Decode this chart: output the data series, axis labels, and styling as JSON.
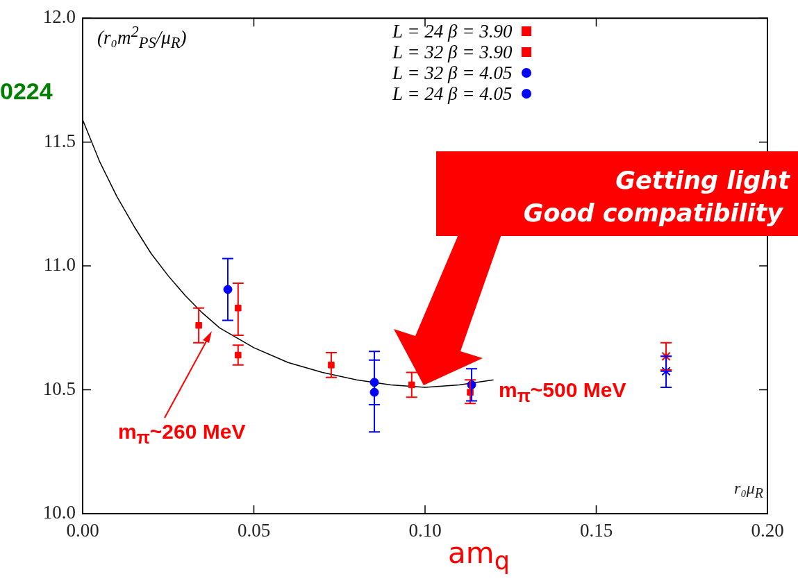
{
  "chart_data": {
    "type": "scatter",
    "xlabel": "am$_{q}$",
    "ylabel": "(r₀m$^{2}$$_{PS}$/μ$_{R}$)",
    "xlim": [
      0,
      0.2
    ],
    "xticks": [
      {
        "value": 0,
        "label": "0.00"
      },
      {
        "value": 0.05,
        "label": "0.05"
      },
      {
        "value": 0.1,
        "label": "0.10"
      },
      {
        "value": 0.15,
        "label": "0.15"
      },
      {
        "value": 0.2,
        "label": "0.20"
      }
    ],
    "ylim": [
      10,
      12
    ],
    "yticks": [
      {
        "value": 10,
        "label": "10.0"
      },
      {
        "value": 10.5,
        "label": "10.5"
      },
      {
        "value": 11,
        "label": "11.0"
      },
      {
        "value": 11.5,
        "label": "11.5"
      },
      {
        "value": 12,
        "label": "12.0"
      }
    ],
    "grid": false,
    "legend": "top right",
    "series": [
      {
        "name": "L = 24  β = 3.90",
        "color": "#ff0000",
        "marker": "square",
        "x": [
          0.0454,
          0.0726,
          0.0961,
          0.1132
        ],
        "values": [
          10.83,
          10.6,
          10.52,
          10.49
        ],
        "errors": [
          [
            10.72,
            10.93
          ],
          [
            10.55,
            10.65
          ],
          [
            10.47,
            10.57
          ],
          [
            10.445,
            10.54
          ]
        ]
      },
      {
        "name": "L = 32  β = 3.90",
        "color": "#ff0000",
        "marker": "square",
        "x": [
          0.0339,
          0.0454
        ],
        "values": [
          10.76,
          10.64
        ],
        "errors": [
          [
            10.69,
            10.83
          ],
          [
            10.6,
            10.68
          ]
        ]
      },
      {
        "name": "L = 32  β = 4.05",
        "color": "#0000ff",
        "marker": "circle",
        "x": [
          0.0424,
          0.0852,
          0.1136
        ],
        "values": [
          10.905,
          10.53,
          10.52
        ],
        "errors": [
          [
            10.78,
            11.03
          ],
          [
            10.44,
            10.655
          ],
          [
            10.455,
            10.585
          ]
        ]
      },
      {
        "name": "L = 24  β = 4.05",
        "color": "#0000ff",
        "marker": "circle",
        "x": [
          0.0852
        ],
        "values": [
          10.49
        ],
        "errors": [
          [
            10.33,
            10.62
          ]
        ]
      },
      {
        "color": "#ff0000",
        "marker": "cross",
        "x": [
          0.1704
        ],
        "values": [
          10.635
        ],
        "errors": [
          [
            10.58,
            10.69
          ]
        ]
      },
      {
        "color": "#0000ff",
        "marker": "cross",
        "x": [
          0.1704
        ],
        "values": [
          10.575
        ],
        "errors": [
          [
            10.51,
            10.635
          ]
        ]
      },
      {
        "type": "line",
        "color": "#000000",
        "marker": "none",
        "x": [
          0,
          0.005,
          0.01,
          0.015,
          0.02,
          0.025,
          0.03,
          0.035,
          0.04,
          0.045,
          0.05,
          0.06,
          0.07,
          0.08,
          0.09,
          0.1,
          0.11,
          0.12
        ],
        "values": [
          11.59,
          11.42,
          11.28,
          11.16,
          11.05,
          10.96,
          10.88,
          10.81,
          10.75,
          10.71,
          10.67,
          10.61,
          10.57,
          10.54,
          10.52,
          10.51,
          10.52,
          10.54
        ]
      }
    ],
    "annotations": [
      "0224",
      "Getting light",
      "Good compatibility",
      "m$_{π}$~260 MeV",
      "m$_{π}$~500 MeV",
      "r₀μ$_{R}$"
    ]
  }
}
